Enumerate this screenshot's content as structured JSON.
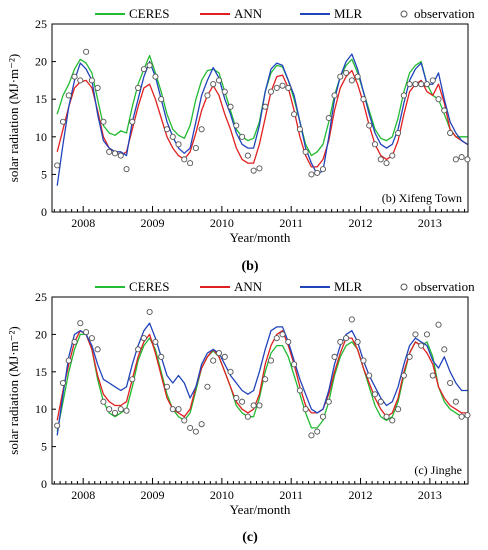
{
  "figure": {
    "panels": [
      {
        "caption": "(b)",
        "station": "(b) Xifeng Town"
      },
      {
        "caption": "(c)",
        "station": "(c) Jinghe"
      }
    ]
  },
  "legend": {
    "ceres": "CERES",
    "ann": "ANN",
    "mlr": "MLR",
    "obs": "observation"
  },
  "colors": {
    "ceres": "#22bb33",
    "ann": "#e02020",
    "mlr": "#2244bb",
    "obs": "#555555"
  },
  "chart_data": [
    {
      "type": "line",
      "title": "",
      "xlabel": "Year/month",
      "ylabel": "solar radiation (MJ·m⁻²)",
      "ylim": [
        0,
        25
      ],
      "yticks": [
        0,
        5,
        10,
        15,
        20,
        25
      ],
      "xlim": [
        2007.55,
        2013.55
      ],
      "year_labels": [
        "2008",
        "2009",
        "2010",
        "2011",
        "2012",
        "2013"
      ],
      "annotation": "(b) Xifeng Town",
      "x": [
        2007.625,
        2007.708,
        2007.792,
        2007.875,
        2007.958,
        2008.042,
        2008.125,
        2008.208,
        2008.292,
        2008.375,
        2008.458,
        2008.542,
        2008.625,
        2008.708,
        2008.792,
        2008.875,
        2008.958,
        2009.042,
        2009.125,
        2009.208,
        2009.292,
        2009.375,
        2009.458,
        2009.542,
        2009.625,
        2009.708,
        2009.792,
        2009.875,
        2009.958,
        2010.042,
        2010.125,
        2010.208,
        2010.292,
        2010.375,
        2010.458,
        2010.542,
        2010.625,
        2010.708,
        2010.792,
        2010.875,
        2010.958,
        2011.042,
        2011.125,
        2011.208,
        2011.292,
        2011.375,
        2011.458,
        2011.542,
        2011.625,
        2011.708,
        2011.792,
        2011.875,
        2011.958,
        2012.042,
        2012.125,
        2012.208,
        2012.292,
        2012.375,
        2012.458,
        2012.542,
        2012.625,
        2012.708,
        2012.792,
        2012.875,
        2012.958,
        2013.042,
        2013.125,
        2013.208,
        2013.292,
        2013.375,
        2013.458,
        2013.542
      ],
      "series": [
        {
          "name": "CERES",
          "color_key": "ceres",
          "values": [
            13.0,
            15.5,
            17.0,
            19.0,
            20.3,
            19.8,
            18.5,
            15.0,
            11.5,
            10.5,
            10.2,
            10.8,
            10.5,
            14.0,
            17.0,
            19.0,
            20.8,
            18.5,
            16.0,
            13.0,
            11.0,
            10.2,
            9.8,
            11.5,
            15.0,
            17.5,
            18.8,
            19.0,
            18.5,
            16.0,
            13.5,
            11.0,
            10.0,
            9.5,
            9.8,
            12.0,
            16.0,
            18.5,
            19.5,
            19.3,
            17.5,
            15.0,
            12.0,
            9.0,
            7.5,
            8.0,
            9.0,
            12.0,
            15.5,
            18.0,
            19.5,
            20.3,
            18.5,
            16.0,
            13.5,
            11.0,
            9.8,
            9.5,
            10.0,
            12.5,
            16.0,
            18.5,
            19.5,
            20.0,
            17.0,
            15.5,
            15.0,
            13.0,
            11.0,
            10.0,
            10.0,
            10.0
          ]
        },
        {
          "name": "ANN",
          "color_key": "ann",
          "values": [
            8.0,
            11.0,
            14.0,
            16.5,
            17.3,
            17.5,
            16.5,
            13.5,
            10.0,
            8.5,
            8.0,
            7.5,
            8.0,
            11.0,
            14.0,
            16.5,
            17.0,
            15.0,
            12.5,
            10.0,
            8.5,
            7.5,
            7.0,
            8.0,
            10.5,
            13.5,
            15.5,
            16.8,
            15.5,
            13.0,
            11.0,
            8.5,
            7.0,
            6.5,
            6.5,
            9.0,
            12.5,
            16.0,
            18.0,
            18.2,
            16.5,
            13.5,
            10.0,
            7.5,
            6.0,
            6.0,
            7.0,
            9.5,
            13.5,
            16.5,
            18.0,
            18.8,
            17.0,
            14.5,
            11.5,
            9.0,
            7.5,
            7.0,
            7.5,
            9.5,
            13.0,
            16.0,
            17.0,
            17.5,
            16.0,
            15.5,
            17.0,
            14.5,
            11.0,
            10.0,
            9.5,
            9.0
          ]
        },
        {
          "name": "MLR",
          "color_key": "mlr",
          "values": [
            3.5,
            9.0,
            14.0,
            17.5,
            19.8,
            19.0,
            17.5,
            13.0,
            9.5,
            8.5,
            8.0,
            8.0,
            7.5,
            12.0,
            15.0,
            18.0,
            20.0,
            18.0,
            15.0,
            12.0,
            10.0,
            8.5,
            7.8,
            8.5,
            12.0,
            15.5,
            17.5,
            19.2,
            17.8,
            15.0,
            13.0,
            10.5,
            9.0,
            8.5,
            8.5,
            11.5,
            16.0,
            19.0,
            19.8,
            19.5,
            17.5,
            15.5,
            12.0,
            8.5,
            6.5,
            5.0,
            5.5,
            10.0,
            15.0,
            18.0,
            20.0,
            21.0,
            19.0,
            16.0,
            13.0,
            10.5,
            9.0,
            8.5,
            9.0,
            11.0,
            14.5,
            17.5,
            19.0,
            19.8,
            17.0,
            17.0,
            18.5,
            15.0,
            12.0,
            10.5,
            9.5,
            9.0
          ]
        },
        {
          "name": "observation",
          "color_key": "obs",
          "marker": "circle",
          "values": [
            6.2,
            12.0,
            15.5,
            18.0,
            17.5,
            21.3,
            17.5,
            16.5,
            12.0,
            8.0,
            7.8,
            7.5,
            5.7,
            12.0,
            16.5,
            19.0,
            19.5,
            18.0,
            15.0,
            11.0,
            10.0,
            9.0,
            7.0,
            6.5,
            8.5,
            11.0,
            15.5,
            17.0,
            17.5,
            16.0,
            14.0,
            11.5,
            10.0,
            7.5,
            5.5,
            5.8,
            14.0,
            16.0,
            16.5,
            16.8,
            16.5,
            13.0,
            11.0,
            8.0,
            5.0,
            5.2,
            5.7,
            12.5,
            15.5,
            18.0,
            18.5,
            17.5,
            18.0,
            15.0,
            11.5,
            9.0,
            7.0,
            6.5,
            7.5,
            10.5,
            15.5,
            17.0,
            17.0,
            17.0,
            17.0,
            17.5,
            15.0,
            13.5,
            10.5,
            7.0,
            7.3,
            7.0
          ]
        }
      ]
    },
    {
      "type": "line",
      "title": "",
      "xlabel": "Year/month",
      "ylabel": "solar radiation (MJ·m⁻²)",
      "ylim": [
        0,
        25
      ],
      "yticks": [
        0,
        5,
        10,
        15,
        20,
        25
      ],
      "xlim": [
        2007.55,
        2013.55
      ],
      "year_labels": [
        "2008",
        "2009",
        "2010",
        "2011",
        "2012",
        "2013"
      ],
      "annotation": "(c) Jinghe",
      "x": [
        2007.625,
        2007.708,
        2007.792,
        2007.875,
        2007.958,
        2008.042,
        2008.125,
        2008.208,
        2008.292,
        2008.375,
        2008.458,
        2008.542,
        2008.625,
        2008.708,
        2008.792,
        2008.875,
        2008.958,
        2009.042,
        2009.125,
        2009.208,
        2009.292,
        2009.375,
        2009.458,
        2009.542,
        2009.625,
        2009.708,
        2009.792,
        2009.875,
        2009.958,
        2010.042,
        2010.125,
        2010.208,
        2010.292,
        2010.375,
        2010.458,
        2010.542,
        2010.625,
        2010.708,
        2010.792,
        2010.875,
        2010.958,
        2011.042,
        2011.125,
        2011.208,
        2011.292,
        2011.375,
        2011.458,
        2011.542,
        2011.625,
        2011.708,
        2011.792,
        2011.875,
        2011.958,
        2012.042,
        2012.125,
        2012.208,
        2012.292,
        2012.375,
        2012.458,
        2012.542,
        2012.625,
        2012.708,
        2012.792,
        2012.875,
        2012.958,
        2013.042,
        2013.125,
        2013.208,
        2013.292,
        2013.375,
        2013.458,
        2013.542
      ],
      "series": [
        {
          "name": "CERES",
          "color_key": "ceres",
          "values": [
            7.0,
            11.0,
            15.0,
            18.0,
            20.0,
            20.0,
            18.0,
            14.0,
            11.0,
            9.5,
            9.0,
            9.5,
            10.0,
            13.0,
            16.5,
            18.5,
            19.5,
            18.0,
            15.0,
            12.0,
            10.0,
            9.0,
            8.5,
            9.5,
            12.5,
            15.5,
            17.0,
            17.8,
            17.0,
            15.0,
            13.0,
            10.5,
            9.5,
            9.0,
            9.0,
            11.5,
            15.0,
            17.5,
            18.5,
            18.5,
            17.0,
            14.5,
            12.0,
            9.5,
            7.5,
            7.5,
            8.5,
            11.0,
            14.5,
            17.0,
            18.5,
            19.0,
            18.0,
            15.5,
            13.0,
            10.5,
            9.0,
            8.5,
            9.0,
            11.0,
            14.5,
            17.5,
            19.0,
            18.5,
            19.0,
            17.0,
            13.0,
            11.0,
            10.0,
            9.5,
            9.0,
            9.0
          ]
        },
        {
          "name": "ANN",
          "color_key": "ann",
          "values": [
            8.5,
            12.5,
            16.0,
            19.0,
            20.5,
            20.0,
            18.0,
            14.5,
            12.0,
            11.0,
            10.5,
            10.5,
            11.0,
            14.0,
            17.0,
            19.0,
            20.0,
            17.5,
            14.5,
            11.5,
            10.0,
            9.5,
            9.0,
            10.0,
            13.0,
            15.5,
            17.0,
            18.0,
            17.0,
            15.0,
            13.0,
            11.0,
            10.0,
            9.5,
            10.0,
            12.0,
            16.0,
            18.5,
            20.0,
            20.5,
            18.5,
            16.0,
            13.0,
            10.5,
            9.5,
            9.5,
            10.0,
            12.0,
            15.0,
            17.5,
            19.5,
            19.5,
            18.0,
            15.5,
            13.5,
            11.5,
            10.0,
            9.0,
            9.5,
            11.5,
            15.0,
            17.5,
            19.0,
            18.5,
            17.5,
            16.0,
            13.0,
            11.5,
            10.5,
            10.0,
            9.5,
            9.5
          ]
        },
        {
          "name": "MLR",
          "color_key": "mlr",
          "values": [
            6.5,
            12.0,
            17.0,
            20.0,
            20.5,
            20.0,
            18.5,
            16.0,
            14.0,
            13.5,
            13.0,
            12.5,
            13.0,
            16.0,
            18.5,
            20.5,
            21.5,
            19.5,
            17.0,
            14.5,
            13.5,
            14.5,
            13.5,
            11.5,
            13.0,
            16.0,
            17.5,
            18.0,
            17.5,
            16.0,
            14.5,
            13.5,
            12.5,
            12.0,
            12.5,
            15.0,
            18.0,
            20.5,
            21.0,
            21.0,
            19.0,
            16.5,
            14.0,
            12.0,
            10.0,
            9.5,
            10.0,
            12.5,
            16.0,
            18.5,
            20.0,
            20.5,
            19.0,
            16.5,
            14.5,
            13.0,
            11.5,
            10.5,
            11.0,
            13.0,
            16.0,
            18.5,
            19.5,
            19.0,
            18.5,
            16.5,
            15.5,
            17.0,
            15.0,
            13.5,
            12.5,
            12.5
          ]
        },
        {
          "name": "observation",
          "color_key": "obs",
          "marker": "circle",
          "values": [
            7.8,
            13.5,
            16.5,
            19.0,
            21.5,
            20.3,
            19.5,
            18.0,
            11.0,
            10.0,
            9.5,
            10.0,
            9.8,
            14.0,
            18.0,
            19.5,
            23.0,
            19.0,
            17.0,
            13.0,
            10.0,
            10.0,
            8.5,
            7.5,
            7.0,
            8.0,
            13.0,
            16.5,
            17.5,
            17.0,
            15.0,
            11.5,
            11.0,
            9.0,
            10.5,
            10.5,
            14.0,
            16.5,
            19.5,
            20.0,
            19.0,
            16.0,
            12.5,
            10.0,
            6.5,
            7.0,
            9.0,
            11.0,
            17.0,
            19.0,
            19.5,
            22.0,
            19.0,
            16.5,
            14.5,
            12.0,
            11.0,
            9.0,
            8.5,
            10.0,
            14.5,
            17.0,
            20.0,
            18.5,
            20.0,
            14.5,
            21.3,
            18.0,
            13.5,
            11.0,
            9.0,
            9.2
          ]
        }
      ]
    }
  ]
}
